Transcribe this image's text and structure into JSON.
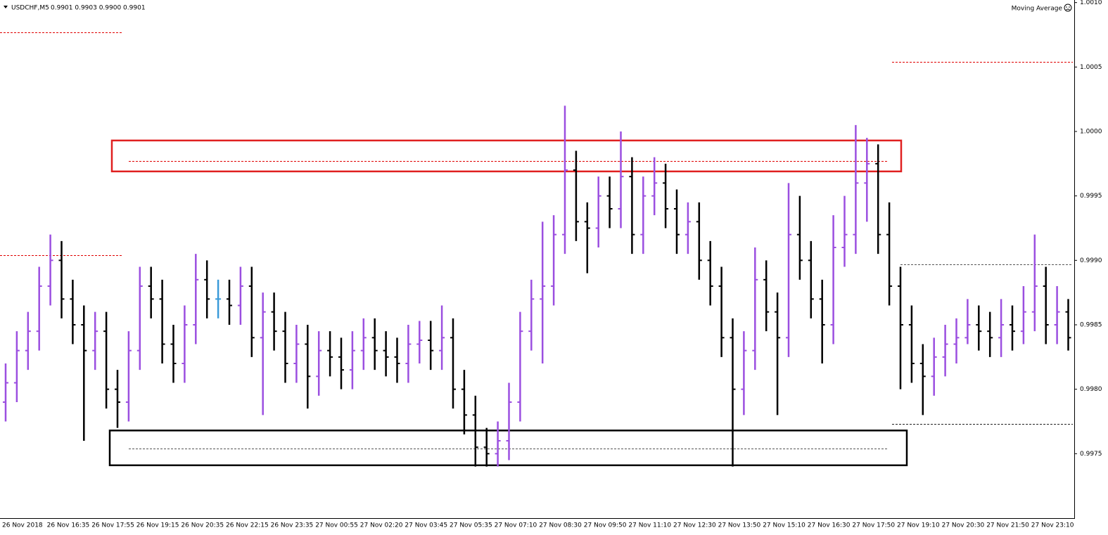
{
  "chart_data": {
    "type": "ohlc",
    "title": "USDCHF,M5",
    "subtitle": "0.9901 0.9903 0.9900 0.9901",
    "indicator": "Moving Average",
    "up_color": "#9b4fe0",
    "down_color": "#000000",
    "flat_color": "#3a9ad9",
    "ylim": [
      0.997,
      1.00102
    ],
    "yticks": [
      0.9975,
      {
        "value": 0.998,
        "label": "0.9980"
      },
      0.9985,
      {
        "value": 0.999,
        "label": "0.9990"
      },
      0.9995,
      {
        "value": 1.0,
        "label": "1.0000"
      },
      1.0005,
      {
        "value": 1.001,
        "label": "1.0010"
      }
    ],
    "categories": [
      "26 Nov 2018",
      null,
      null,
      null,
      "26 Nov 16:35",
      null,
      null,
      null,
      "26 Nov 17:55",
      null,
      null,
      null,
      "26 Nov 19:15",
      null,
      null,
      null,
      "26 Nov 20:35",
      null,
      null,
      null,
      "26 Nov 22:15",
      null,
      null,
      null,
      "26 Nov 23:35",
      null,
      null,
      null,
      "27 Nov 00:55",
      null,
      null,
      null,
      "27 Nov 02:20",
      null,
      null,
      null,
      "27 Nov 03:45",
      null,
      null,
      null,
      "27 Nov 05:35",
      null,
      null,
      null,
      "27 Nov 07:10",
      null,
      null,
      null,
      "27 Nov 08:30",
      null,
      null,
      null,
      "27 Nov 09:50",
      null,
      null,
      null,
      "27 Nov 11:10",
      null,
      null,
      null,
      "27 Nov 12:30",
      null,
      null,
      null,
      "27 Nov 13:50",
      null,
      null,
      null,
      "27 Nov 15:10",
      null,
      null,
      null,
      "27 Nov 16:30",
      null,
      null,
      null,
      "27 Nov 17:50",
      null,
      null,
      null,
      "27 Nov 19:10",
      null,
      null,
      null,
      "27 Nov 20:30",
      null,
      null,
      null,
      "27 Nov 21:50",
      null,
      null,
      null,
      "27 Nov 23:10",
      null,
      null,
      null
    ],
    "open": [
      0.9979,
      0.99805,
      0.9983,
      0.99845,
      0.9988,
      0.999,
      0.9987,
      0.9985,
      0.9983,
      0.99845,
      0.998,
      0.9979,
      0.9983,
      0.9988,
      0.9987,
      0.99835,
      0.9982,
      0.9985,
      0.99885,
      0.9987,
      0.9987,
      0.99865,
      0.9988,
      0.9984,
      0.9986,
      0.99845,
      0.9982,
      0.99835,
      0.9981,
      0.9983,
      0.99825,
      0.99815,
      0.9983,
      0.9984,
      0.9983,
      0.99825,
      0.9982,
      0.99835,
      0.99838,
      0.9983,
      0.9984,
      0.998,
      0.9978,
      0.99755,
      0.9975,
      0.9976,
      0.9979,
      0.99845,
      0.9987,
      0.9988,
      0.9992,
      0.9997,
      0.9993,
      0.99925,
      0.9995,
      0.9994,
      0.99965,
      0.9992,
      0.9995,
      0.9996,
      0.9994,
      0.9992,
      0.9993,
      0.999,
      0.9988,
      0.9984,
      0.998,
      0.9983,
      0.99885,
      0.9986,
      0.9984,
      0.9992,
      0.999,
      0.9987,
      0.9985,
      0.9991,
      0.9992,
      0.9996,
      0.99975,
      0.9992,
      0.9988,
      0.9985,
      0.9982,
      0.9981,
      0.99825,
      0.99835,
      0.9984,
      0.9985,
      0.99845,
      0.9984,
      0.9985,
      0.99845,
      0.9986,
      0.9988,
      0.9985,
      0.9986
    ],
    "high": [
      0.9982,
      0.99845,
      0.9986,
      0.99895,
      0.9992,
      0.99915,
      0.99885,
      0.99865,
      0.9986,
      0.9986,
      0.99815,
      0.99845,
      0.99895,
      0.99895,
      0.99885,
      0.9985,
      0.99865,
      0.99905,
      0.999,
      0.99885,
      0.99885,
      0.99895,
      0.99895,
      0.99875,
      0.99875,
      0.9986,
      0.9985,
      0.9985,
      0.99845,
      0.99845,
      0.9984,
      0.99845,
      0.99855,
      0.99855,
      0.99845,
      0.9984,
      0.9985,
      0.99853,
      0.99853,
      0.99865,
      0.99855,
      0.99815,
      0.99795,
      0.9977,
      0.99775,
      0.99805,
      0.9986,
      0.99885,
      0.9993,
      0.99935,
      1.0002,
      0.99985,
      0.99945,
      0.99965,
      0.99965,
      1.0,
      0.9998,
      0.99965,
      0.9998,
      0.99975,
      0.99955,
      0.99945,
      0.99945,
      0.99915,
      0.99895,
      0.99855,
      0.99845,
      0.9991,
      0.999,
      0.99875,
      0.9996,
      0.9995,
      0.99915,
      0.99885,
      0.99935,
      0.9995,
      1.00005,
      0.99995,
      0.9999,
      0.99945,
      0.99895,
      0.99865,
      0.99835,
      0.9984,
      0.9985,
      0.99855,
      0.9987,
      0.99865,
      0.9986,
      0.9987,
      0.99865,
      0.9988,
      0.9992,
      0.99895,
      0.9988,
      0.9987
    ],
    "low": [
      0.99775,
      0.9979,
      0.99815,
      0.9983,
      0.99865,
      0.99855,
      0.99835,
      0.9976,
      0.99815,
      0.99785,
      0.9977,
      0.99775,
      0.99815,
      0.99855,
      0.9982,
      0.99805,
      0.99805,
      0.99835,
      0.99855,
      0.99855,
      0.9985,
      0.9985,
      0.99825,
      0.9978,
      0.9983,
      0.99805,
      0.99805,
      0.99785,
      0.99795,
      0.9981,
      0.998,
      0.998,
      0.99815,
      0.99815,
      0.9981,
      0.99805,
      0.99805,
      0.9982,
      0.99815,
      0.99815,
      0.99785,
      0.99765,
      0.9974,
      0.9974,
      0.9974,
      0.99745,
      0.99775,
      0.9983,
      0.9982,
      0.99865,
      0.99905,
      0.99915,
      0.9989,
      0.9991,
      0.99925,
      0.99925,
      0.99905,
      0.99905,
      0.99935,
      0.99925,
      0.99905,
      0.99905,
      0.99885,
      0.99865,
      0.99825,
      0.9974,
      0.9978,
      0.99815,
      0.99845,
      0.9978,
      0.99825,
      0.99885,
      0.99855,
      0.9982,
      0.99835,
      0.99895,
      0.99905,
      0.9993,
      0.99905,
      0.99865,
      0.998,
      0.99805,
      0.9978,
      0.99795,
      0.9981,
      0.9982,
      0.99835,
      0.9983,
      0.99825,
      0.99825,
      0.9983,
      0.99835,
      0.99845,
      0.99835,
      0.99835,
      0.9983
    ],
    "close": [
      0.99805,
      0.9983,
      0.99845,
      0.9988,
      0.999,
      0.9987,
      0.9985,
      0.9983,
      0.99845,
      0.998,
      0.9979,
      0.9983,
      0.9988,
      0.9987,
      0.99835,
      0.9982,
      0.9985,
      0.99885,
      0.9987,
      0.9987,
      0.99865,
      0.9988,
      0.9984,
      0.9986,
      0.99845,
      0.9982,
      0.99835,
      0.9981,
      0.9983,
      0.99825,
      0.99815,
      0.9983,
      0.9984,
      0.9983,
      0.99825,
      0.9982,
      0.99835,
      0.99838,
      0.9983,
      0.9984,
      0.998,
      0.9978,
      0.99755,
      0.9975,
      0.9976,
      0.9979,
      0.99845,
      0.9987,
      0.9988,
      0.9992,
      0.9997,
      0.9993,
      0.99925,
      0.9995,
      0.9994,
      0.99965,
      0.9992,
      0.9995,
      0.9996,
      0.9994,
      0.9992,
      0.9993,
      0.999,
      0.9988,
      0.9984,
      0.998,
      0.9983,
      0.99885,
      0.9986,
      0.9984,
      0.9992,
      0.999,
      0.9987,
      0.9985,
      0.9991,
      0.9992,
      0.9996,
      0.99975,
      0.9992,
      0.9988,
      0.9985,
      0.9982,
      0.9981,
      0.99825,
      0.99835,
      0.9984,
      0.9985,
      0.99845,
      0.9984,
      0.9985,
      0.99845,
      0.9986,
      0.9988,
      0.9985,
      0.9986,
      0.9984
    ],
    "levels": [
      {
        "value": 1.00077,
        "color": "#e00000"
      },
      {
        "value": 0.99904,
        "color": "#e00000"
      },
      {
        "value": 1.00054,
        "color": "#e00000"
      },
      {
        "value": 0.99977,
        "color": "#e00000"
      },
      {
        "value": 0.99897,
        "color": "#555555"
      },
      {
        "value": 0.99773,
        "color": "#222222"
      },
      {
        "value": 0.99754,
        "color": "#555555"
      }
    ],
    "zones": [
      {
        "top": 0.99993,
        "bottom": 0.99969,
        "color": "#e02020"
      },
      {
        "top": 0.99768,
        "bottom": 0.99741,
        "color": "#000000"
      }
    ]
  }
}
